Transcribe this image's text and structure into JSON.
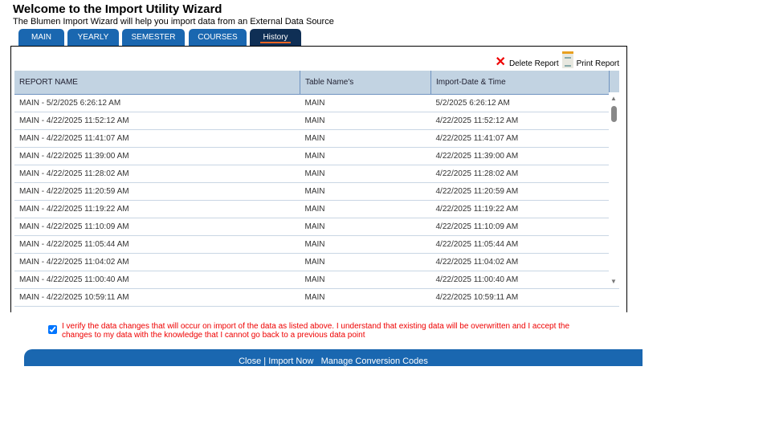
{
  "header": {
    "title": "Welcome to the Import Utility Wizard",
    "subtitle": "The Blumen Import Wizard will help you import data from an External Data Source"
  },
  "tabs": [
    {
      "label": "MAIN"
    },
    {
      "label": "YEARLY"
    },
    {
      "label": "SEMESTER"
    },
    {
      "label": "COURSES"
    },
    {
      "label": "History",
      "active": true
    }
  ],
  "actions": {
    "delete": "Delete Report",
    "print": "Print Report"
  },
  "table": {
    "columns": [
      "REPORT NAME",
      "Table Name's",
      "Import-Date & Time"
    ],
    "rows": [
      [
        "MAIN - 5/2/2025 6:26:12 AM",
        "MAIN",
        "5/2/2025 6:26:12 AM"
      ],
      [
        "MAIN - 4/22/2025 11:52:12 AM",
        "MAIN",
        "4/22/2025 11:52:12 AM"
      ],
      [
        "MAIN - 4/22/2025 11:41:07 AM",
        "MAIN",
        "4/22/2025 11:41:07 AM"
      ],
      [
        "MAIN - 4/22/2025 11:39:00 AM",
        "MAIN",
        "4/22/2025 11:39:00 AM"
      ],
      [
        "MAIN - 4/22/2025 11:28:02 AM",
        "MAIN",
        "4/22/2025 11:28:02 AM"
      ],
      [
        "MAIN - 4/22/2025 11:20:59 AM",
        "MAIN",
        "4/22/2025 11:20:59 AM"
      ],
      [
        "MAIN - 4/22/2025 11:19:22 AM",
        "MAIN",
        "4/22/2025 11:19:22 AM"
      ],
      [
        "MAIN - 4/22/2025 11:10:09 AM",
        "MAIN",
        "4/22/2025 11:10:09 AM"
      ],
      [
        "MAIN - 4/22/2025 11:05:44 AM",
        "MAIN",
        "4/22/2025 11:05:44 AM"
      ],
      [
        "MAIN - 4/22/2025 11:04:02 AM",
        "MAIN",
        "4/22/2025 11:04:02 AM"
      ],
      [
        "MAIN - 4/22/2025 11:00:40 AM",
        "MAIN",
        "4/22/2025 11:00:40 AM"
      ],
      [
        "MAIN - 4/22/2025 10:59:11 AM",
        "MAIN",
        "4/22/2025 10:59:11 AM"
      ]
    ]
  },
  "verify": {
    "checked": true,
    "text": "I verify the data changes that will occur on import of the data as listed above. I understand that existing data will be overwritten and I accept the changes to my data with the knowledge that I cannot go back to a previous data point"
  },
  "footer": {
    "close": "Close",
    "sep": "|",
    "import": "Import Now",
    "manage": "Manage Conversion Codes"
  },
  "colors": {
    "tab": "#1a67b0",
    "active_tab": "#0f2f55",
    "accent": "#f26522",
    "warning": "#e00000"
  }
}
